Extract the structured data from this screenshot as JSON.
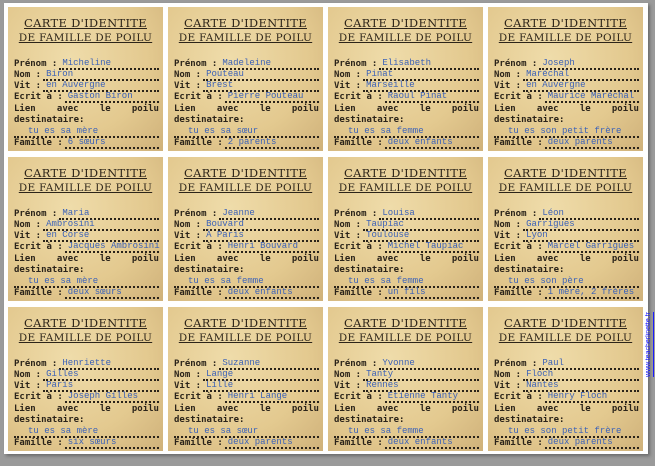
{
  "labels": {
    "title1": "CARTE D'IDENTITE",
    "title2": "DE FAMILLE DE POILU",
    "prenom": "Prénom :",
    "nom": "Nom :",
    "vit": "Vit :",
    "ecrit": "Ecrit à :",
    "lien_words": [
      "Lien",
      "avec",
      "le",
      "poilu"
    ],
    "destinataire": "destinataire:",
    "famille": "Famille :"
  },
  "cards": [
    {
      "prenom": "Micheline",
      "nom": "Biron",
      "vit": "en Auvergne",
      "ecrit": "Gaston Biron",
      "lien": "tu es sa mère",
      "famille": "6 sœurs"
    },
    {
      "prenom": "Madeleine",
      "nom": "Pouteau",
      "vit": "Brest",
      "ecrit": "Pierre Pouteau",
      "lien": "tu es sa sœur",
      "famille": "2 parents"
    },
    {
      "prenom": "Elisabeth",
      "nom": "Pinat",
      "vit": "Marseille",
      "ecrit": "Raoul Pinat",
      "lien": "tu es sa femme",
      "famille": "deux enfants"
    },
    {
      "prenom": "Joseph",
      "nom": "Maréchal",
      "vit": "en Auvergne",
      "ecrit": "Maurice Maréchal",
      "lien": "tu es son petit frère",
      "famille": "deux parents"
    },
    {
      "prenom": "Maria",
      "nom": "Ambrosini",
      "vit": "en Corse",
      "ecrit": "Jacques Ambrosini",
      "lien": "tu es sa mère",
      "famille": "deux sœurs"
    },
    {
      "prenom": "Jeanne",
      "nom": "Bouvard",
      "vit": "À Paris",
      "ecrit": "Henri Bouvard",
      "lien": "tu es sa femme",
      "famille": "deux enfants"
    },
    {
      "prenom": "Louisa",
      "nom": "Taupiac",
      "vit": "Toulouse",
      "ecrit": "Michel Taupiac",
      "lien": "tu es sa femme",
      "famille": "un fils"
    },
    {
      "prenom": "Léon",
      "nom": "Garrigues",
      "vit": "Lyon",
      "ecrit": "Marcel Garrigues",
      "lien": "tu es son père",
      "famille": "1 mère, 2 frères"
    },
    {
      "prenom": "Henriette",
      "nom": "Gilles",
      "vit": "Paris",
      "ecrit": "Joseph Gilles",
      "lien": "tu es sa mère",
      "famille": "six sœurs"
    },
    {
      "prenom": "Suzanne",
      "nom": "Lange",
      "vit": "Lille",
      "ecrit": "Henri Lange",
      "lien": "tu es sa sœur",
      "famille": "deux parents"
    },
    {
      "prenom": "Yvonne",
      "nom": "Tanty",
      "vit": "Rennes",
      "ecrit": "Etienne Tanty",
      "lien": "tu es sa femme",
      "famille": "deux enfants"
    },
    {
      "prenom": "Paul",
      "nom": "Floch",
      "vit": "Nantes",
      "ecrit": "Henry Floch",
      "lien": "tu es son petit frère",
      "famille": "deux parents"
    }
  ],
  "link": "www.teacherlinette.fr"
}
